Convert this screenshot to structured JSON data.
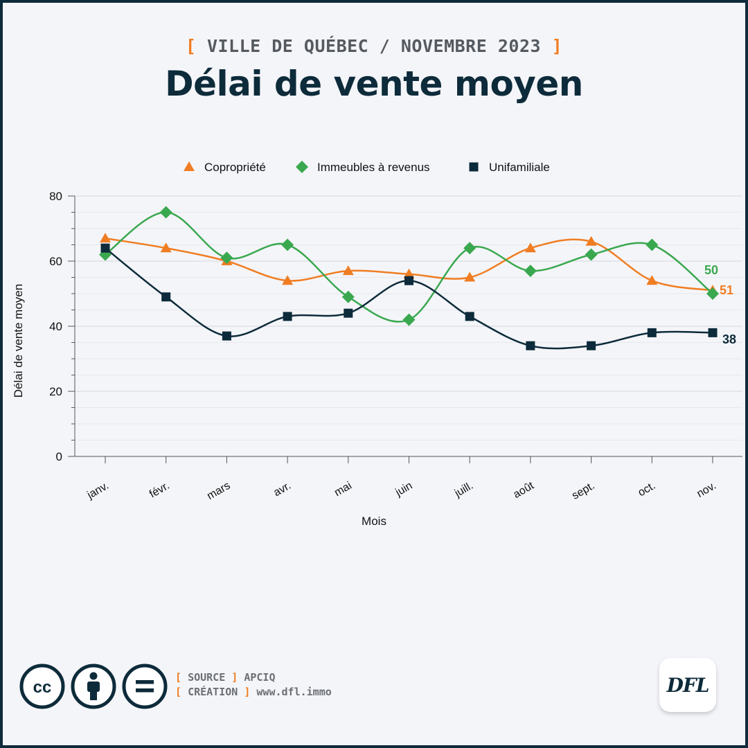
{
  "header": {
    "subtitle_open": "[",
    "subtitle_text": "VILLE DE QUÉBEC / NOVEMBRE 2023",
    "subtitle_close": "]",
    "title": "Délai de vente moyen"
  },
  "colors": {
    "copropriete": "#f07d22",
    "immeubles": "#3aa84f",
    "unifamiliale": "#0d2b3a",
    "accent": "#f07d22",
    "navy": "#0d2b3a"
  },
  "chart_data": {
    "type": "line",
    "categories": [
      "janv.",
      "févr.",
      "mars",
      "avr.",
      "mai",
      "juin",
      "juill.",
      "août",
      "sept.",
      "oct.",
      "nov."
    ],
    "xlabel": "Mois",
    "ylabel": "Délai de vente moyen",
    "ylim": [
      0,
      80
    ],
    "yticks": [
      0,
      20,
      40,
      60,
      80
    ],
    "grid": true,
    "smooth": true,
    "legend_position": "top-center",
    "series": [
      {
        "name": "Copropriété",
        "marker": "triangle",
        "color": "#f07d22",
        "values": [
          67,
          64,
          60,
          54,
          57,
          56,
          55,
          64,
          66,
          54,
          51
        ],
        "end_label": "51"
      },
      {
        "name": "Immeubles à revenus",
        "marker": "diamond",
        "color": "#3aa84f",
        "values": [
          62,
          75,
          61,
          65,
          49,
          42,
          64,
          57,
          62,
          65,
          50
        ],
        "end_label": "50"
      },
      {
        "name": "Unifamiliale",
        "marker": "square",
        "color": "#0d2b3a",
        "values": [
          64,
          49,
          37,
          43,
          44,
          54,
          43,
          34,
          34,
          38,
          38
        ],
        "end_label": "38"
      }
    ]
  },
  "footer": {
    "source_open": "[",
    "source_key": "SOURCE",
    "source_close": "]",
    "source_value": "APCIQ",
    "creation_open": "[",
    "creation_key": "CRÉATION",
    "creation_close": "]",
    "creation_value": "www.dfl.immo",
    "license_icons": [
      "cc-icon",
      "by-icon",
      "nd-icon"
    ],
    "logo_text": "DFL"
  }
}
